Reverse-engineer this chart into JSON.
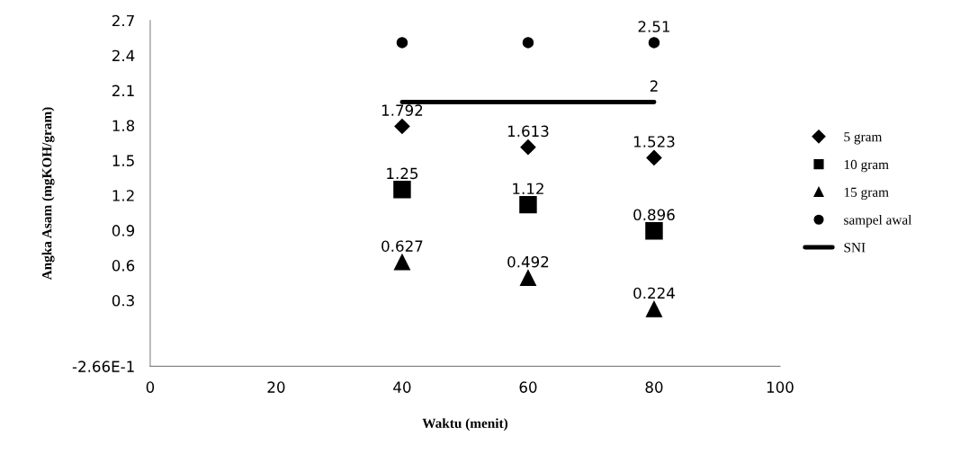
{
  "chart_data": {
    "type": "scatter",
    "xlabel": "Waktu (menit)",
    "ylabel": "Angka Asam (mgKOH/gram)",
    "x": [
      40,
      60,
      80
    ],
    "series": [
      {
        "name": "5 gram",
        "color": "#000000",
        "marker": "diamond",
        "values": [
          1.792,
          1.613,
          1.523
        ],
        "value_labels": [
          "1.792",
          "1.613",
          "1.523"
        ]
      },
      {
        "name": "10 gram",
        "color": "#000000",
        "marker": "square",
        "values": [
          1.25,
          1.12,
          0.896
        ],
        "value_labels": [
          "1.25",
          "1.12",
          "0.896"
        ]
      },
      {
        "name": "15 gram",
        "color": "#000000",
        "marker": "triangle",
        "values": [
          0.627,
          0.492,
          0.224
        ],
        "value_labels": [
          "0.627",
          "0.492",
          "0.224"
        ]
      },
      {
        "name": "sampel awal",
        "color": "#000000",
        "marker": "circle",
        "values": [
          2.51,
          2.51,
          2.51
        ],
        "value_labels": [
          null,
          null,
          "2.51"
        ]
      },
      {
        "name": "SNI",
        "type": "line",
        "color": "#000000",
        "marker": "none",
        "values": [
          2,
          2,
          2
        ],
        "value_labels": [
          null,
          null,
          "2"
        ]
      }
    ],
    "xlim": [
      0,
      100
    ],
    "xticks": [
      0,
      20,
      40,
      60,
      80,
      100
    ],
    "ylim": [
      -0.266,
      2.7
    ],
    "yticks": [
      {
        "value": -0.266,
        "label": "-2.66E-1"
      },
      0.3,
      0.6,
      0.9,
      1.2,
      1.5,
      1.8,
      2.1,
      2.4,
      2.7
    ],
    "grid": false,
    "legend": "right"
  }
}
